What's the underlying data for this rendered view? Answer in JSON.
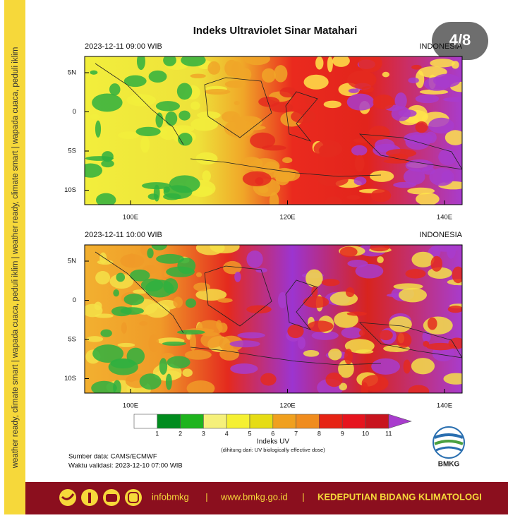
{
  "side_text": "weather ready, climate smart  |  wapada cuaca, peduli iklim  |  weather ready, climate smart  |  wapada cuaca, peduli iklim",
  "badge": "4/8",
  "title": "Indeks Ultraviolet Sinar Matahari",
  "panels": [
    {
      "date": "2023-12-11  09:00 WIB",
      "region": "INDONESIA",
      "lat_ticks": [
        "5N",
        "0",
        "5S",
        "10S"
      ],
      "lon_ticks": [
        "100E",
        "120E",
        "140E"
      ]
    },
    {
      "date": "2023-12-11  10:00 WIB",
      "region": "INDONESIA",
      "lat_ticks": [
        "5N",
        "0",
        "5S",
        "10S"
      ],
      "lon_ticks": [
        "100E",
        "120E",
        "140E"
      ]
    }
  ],
  "colorbar": {
    "labels": [
      1,
      2,
      3,
      4,
      5,
      6,
      7,
      8,
      9,
      10,
      11
    ],
    "title": "Indeks UV",
    "subtitle": "(dihitung dari: UV biologically effective dose)"
  },
  "source": "Sumber data: CAMS/ECMWF",
  "validity": "Waktu validasi: 2023-12-10 07:00 WIB",
  "logo": "BMKG",
  "footer": {
    "social": "infobmkg",
    "separator": "|",
    "website": "www.bmkg.go.id",
    "department": "KEDEPUTIAN BIDANG KLIMATOLOGI"
  }
}
